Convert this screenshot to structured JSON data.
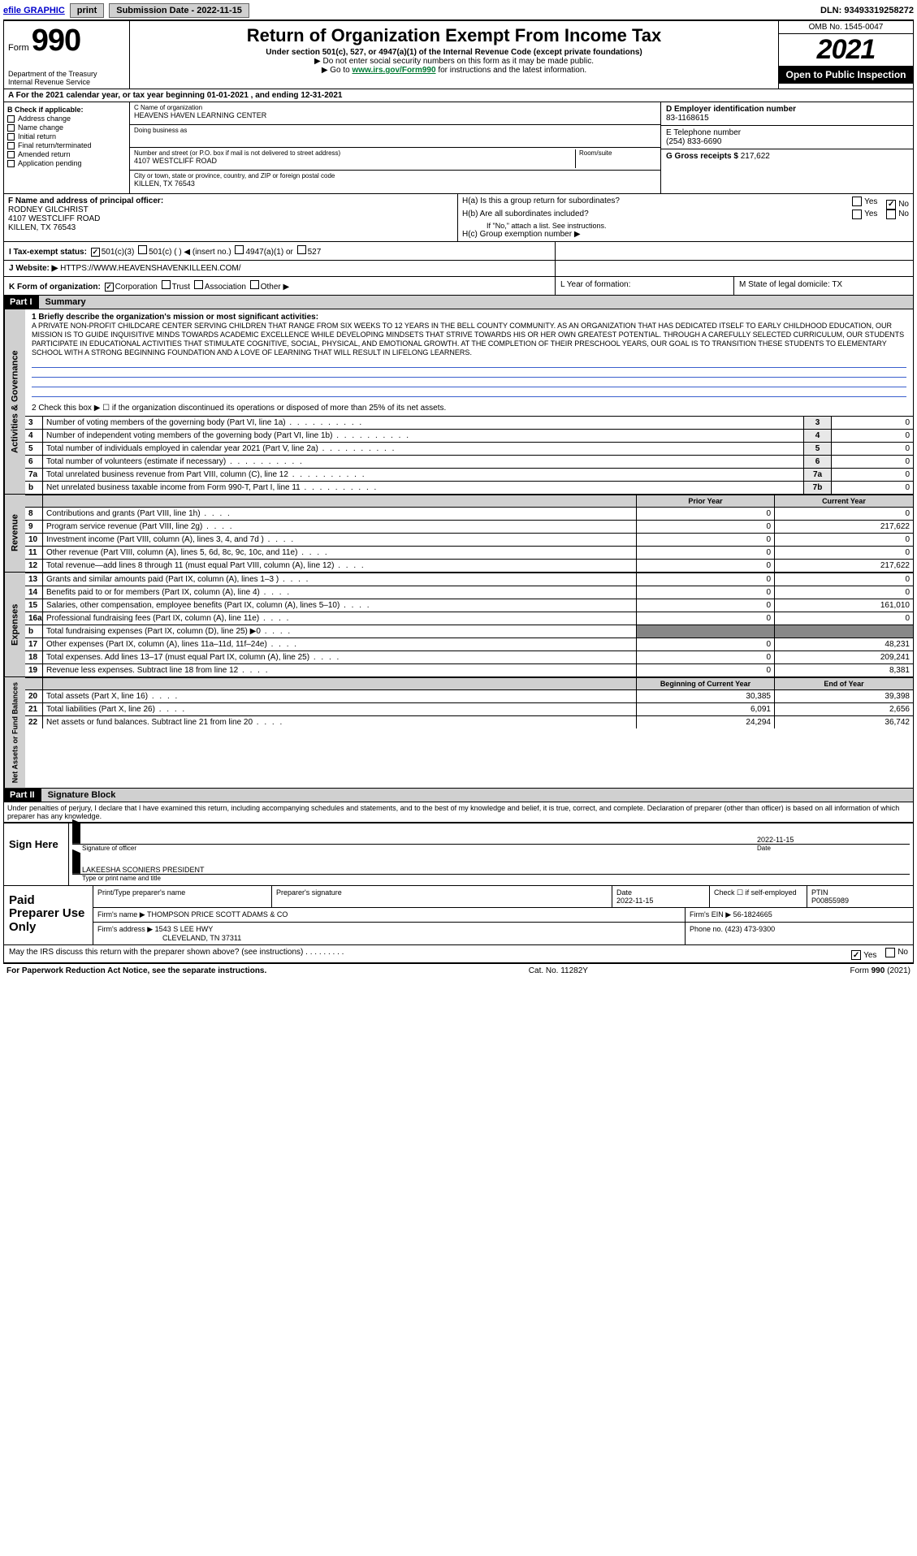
{
  "topbar": {
    "efile_link": "efile GRAPHIC",
    "print_btn": "print",
    "sub_date_label": "Submission Date - 2022-11-15",
    "dln": "DLN: 93493319258272"
  },
  "header": {
    "form_prefix": "Form",
    "form_number": "990",
    "dept": "Department of the Treasury",
    "irs": "Internal Revenue Service",
    "title": "Return of Organization Exempt From Income Tax",
    "subtitle": "Under section 501(c), 527, or 4947(a)(1) of the Internal Revenue Code (except private foundations)",
    "note1": "▶ Do not enter social security numbers on this form as it may be made public.",
    "note2_prefix": "▶ Go to ",
    "note2_link": "www.irs.gov/Form990",
    "note2_suffix": " for instructions and the latest information.",
    "omb": "OMB No. 1545-0047",
    "year": "2021",
    "open_public": "Open to Public Inspection"
  },
  "period": {
    "line": "A For the 2021 calendar year, or tax year beginning 01-01-2021   , and ending 12-31-2021"
  },
  "checkB": {
    "label": "B Check if applicable:",
    "items": [
      "Address change",
      "Name change",
      "Initial return",
      "Final return/terminated",
      "Amended return",
      "Application pending"
    ]
  },
  "entity": {
    "c_label": "C Name of organization",
    "c_name": "HEAVENS HAVEN LEARNING CENTER",
    "dba_label": "Doing business as",
    "addr_label": "Number and street (or P.O. box if mail is not delivered to street address)",
    "addr": "4107 WESTCLIFF ROAD",
    "room_label": "Room/suite",
    "city_label": "City or town, state or province, country, and ZIP or foreign postal code",
    "city": "KILLEN, TX  76543",
    "d_label": "D Employer identification number",
    "d_ein": "83-1168615",
    "e_label": "E Telephone number",
    "e_phone": "(254) 833-6690",
    "g_label": "G Gross receipts $",
    "g_amount": "217,622"
  },
  "rowF": {
    "label": "F  Name and address of principal officer:",
    "name": "RODNEY GILCHRIST",
    "addr1": "4107 WESTCLIFF ROAD",
    "addr2": "KILLEN, TX  76543"
  },
  "rowH": {
    "ha": "H(a)  Is this a group return for subordinates?",
    "hb": "H(b)  Are all subordinates included?",
    "hb_note": "If \"No,\" attach a list. See instructions.",
    "hc": "H(c)  Group exemption number ▶",
    "yes": "Yes",
    "no": "No"
  },
  "rowI": {
    "label": "I   Tax-exempt status:",
    "opts": [
      "501(c)(3)",
      "501(c) (  ) ◀ (insert no.)",
      "4947(a)(1) or",
      "527"
    ]
  },
  "rowJ": {
    "label": "J  Website: ▶",
    "url": "HTTPS://WWW.HEAVENSHAVENKILLEEN.COM/"
  },
  "rowK": {
    "label": "K Form of organization:",
    "opts": [
      "Corporation",
      "Trust",
      "Association",
      "Other ▶"
    ],
    "L": "L Year of formation:",
    "M": "M State of legal domicile: TX"
  },
  "part1": {
    "hdr": "Part I",
    "title": "Summary",
    "tab_gov": "Activities & Governance",
    "tab_rev": "Revenue",
    "tab_exp": "Expenses",
    "tab_net": "Net Assets or Fund Balances",
    "line1_label": "1   Briefly describe the organization's mission or most significant activities:",
    "mission": "A PRIVATE NON-PROFIT CHILDCARE CENTER SERVING CHILDREN THAT RANGE FROM SIX WEEKS TO 12 YEARS IN THE BELL COUNTY COMMUNITY. AS AN ORGANIZATION THAT HAS DEDICATED ITSELF TO EARLY CHILDHOOD EDUCATION, OUR MISSION IS TO GUIDE INQUISITIVE MINDS TOWARDS ACADEMIC EXCELLENCE WHILE DEVELOPING MINDSETS THAT STRIVE TOWARDS HIS OR HER OWN GREATEST POTENTIAL. THROUGH A CAREFULLY SELECTED CURRICULUM, OUR STUDENTS PARTICIPATE IN EDUCATIONAL ACTIVITIES THAT STIMULATE COGNITIVE, SOCIAL, PHYSICAL, AND EMOTIONAL GROWTH. AT THE COMPLETION OF THEIR PRESCHOOL YEARS, OUR GOAL IS TO TRANSITION THESE STUDENTS TO ELEMENTARY SCHOOL WITH A STRONG BEGINNING FOUNDATION AND A LOVE OF LEARNING THAT WILL RESULT IN LIFELONG LEARNERS.",
    "line2": "2   Check this box ▶ ☐  if the organization discontinued its operations or disposed of more than 25% of its net assets.",
    "govlines": [
      {
        "n": "3",
        "t": "Number of voting members of the governing body (Part VI, line 1a)",
        "b": "3",
        "v": "0"
      },
      {
        "n": "4",
        "t": "Number of independent voting members of the governing body (Part VI, line 1b)",
        "b": "4",
        "v": "0"
      },
      {
        "n": "5",
        "t": "Total number of individuals employed in calendar year 2021 (Part V, line 2a)",
        "b": "5",
        "v": "0"
      },
      {
        "n": "6",
        "t": "Total number of volunteers (estimate if necessary)",
        "b": "6",
        "v": "0"
      },
      {
        "n": "7a",
        "t": "Total unrelated business revenue from Part VIII, column (C), line 12",
        "b": "7a",
        "v": "0"
      },
      {
        "n": "b",
        "t": "Net unrelated business taxable income from Form 990-T, Part I, line 11",
        "b": "7b",
        "v": "0"
      }
    ],
    "col_prior": "Prior Year",
    "col_curr": "Current Year",
    "revlines": [
      {
        "n": "8",
        "t": "Contributions and grants (Part VIII, line 1h)",
        "p": "0",
        "c": "0"
      },
      {
        "n": "9",
        "t": "Program service revenue (Part VIII, line 2g)",
        "p": "0",
        "c": "217,622"
      },
      {
        "n": "10",
        "t": "Investment income (Part VIII, column (A), lines 3, 4, and 7d )",
        "p": "0",
        "c": "0"
      },
      {
        "n": "11",
        "t": "Other revenue (Part VIII, column (A), lines 5, 6d, 8c, 9c, 10c, and 11e)",
        "p": "0",
        "c": "0"
      },
      {
        "n": "12",
        "t": "Total revenue—add lines 8 through 11 (must equal Part VIII, column (A), line 12)",
        "p": "0",
        "c": "217,622"
      }
    ],
    "explines": [
      {
        "n": "13",
        "t": "Grants and similar amounts paid (Part IX, column (A), lines 1–3 )",
        "p": "0",
        "c": "0"
      },
      {
        "n": "14",
        "t": "Benefits paid to or for members (Part IX, column (A), line 4)",
        "p": "0",
        "c": "0"
      },
      {
        "n": "15",
        "t": "Salaries, other compensation, employee benefits (Part IX, column (A), lines 5–10)",
        "p": "0",
        "c": "161,010"
      },
      {
        "n": "16a",
        "t": "Professional fundraising fees (Part IX, column (A), line 11e)",
        "p": "0",
        "c": "0"
      },
      {
        "n": "b",
        "t": "Total fundraising expenses (Part IX, column (D), line 25) ▶0",
        "p": "",
        "c": "",
        "shade": true
      },
      {
        "n": "17",
        "t": "Other expenses (Part IX, column (A), lines 11a–11d, 11f–24e)",
        "p": "0",
        "c": "48,231"
      },
      {
        "n": "18",
        "t": "Total expenses. Add lines 13–17 (must equal Part IX, column (A), line 25)",
        "p": "0",
        "c": "209,241"
      },
      {
        "n": "19",
        "t": "Revenue less expenses. Subtract line 18 from line 12",
        "p": "0",
        "c": "8,381"
      }
    ],
    "col_beg": "Beginning of Current Year",
    "col_end": "End of Year",
    "netlines": [
      {
        "n": "20",
        "t": "Total assets (Part X, line 16)",
        "p": "30,385",
        "c": "39,398"
      },
      {
        "n": "21",
        "t": "Total liabilities (Part X, line 26)",
        "p": "6,091",
        "c": "2,656"
      },
      {
        "n": "22",
        "t": "Net assets or fund balances. Subtract line 21 from line 20",
        "p": "24,294",
        "c": "36,742"
      }
    ]
  },
  "part2": {
    "hdr": "Part II",
    "title": "Signature Block",
    "penalty": "Under penalties of perjury, I declare that I have examined this return, including accompanying schedules and statements, and to the best of my knowledge and belief, it is true, correct, and complete. Declaration of preparer (other than officer) is based on all information of which preparer has any knowledge.",
    "sign_here": "Sign Here",
    "sig_officer": "Signature of officer",
    "sig_date": "2022-11-15",
    "date_lbl": "Date",
    "officer_name": "LAKEESHA SCONIERS  PRESIDENT",
    "type_lbl": "Type or print name and title",
    "paid_prep": "Paid Preparer Use Only",
    "col_pname": "Print/Type preparer's name",
    "col_psig": "Preparer's signature",
    "col_pdate": "Date",
    "pdate": "2022-11-15",
    "col_check": "Check ☐ if self-employed",
    "col_ptin": "PTIN",
    "ptin": "P00855989",
    "firm_name_lbl": "Firm's name    ▶",
    "firm_name": "THOMPSON PRICE SCOTT ADAMS & CO",
    "firm_ein_lbl": "Firm's EIN ▶",
    "firm_ein": "56-1824665",
    "firm_addr_lbl": "Firm's address ▶",
    "firm_addr1": "1543 S LEE HWY",
    "firm_addr2": "CLEVELAND, TN  37311",
    "firm_phone_lbl": "Phone no.",
    "firm_phone": "(423) 473-9300",
    "discuss": "May the IRS discuss this return with the preparer shown above? (see instructions)",
    "yes": "Yes",
    "no": "No"
  },
  "footer": {
    "left": "For Paperwork Reduction Act Notice, see the separate instructions.",
    "mid": "Cat. No. 11282Y",
    "right": "Form 990 (2021)"
  },
  "colors": {
    "link": "#0000cc",
    "green": "#007a33",
    "shade": "#d0d0d0",
    "blueline": "#3a5fcd"
  }
}
